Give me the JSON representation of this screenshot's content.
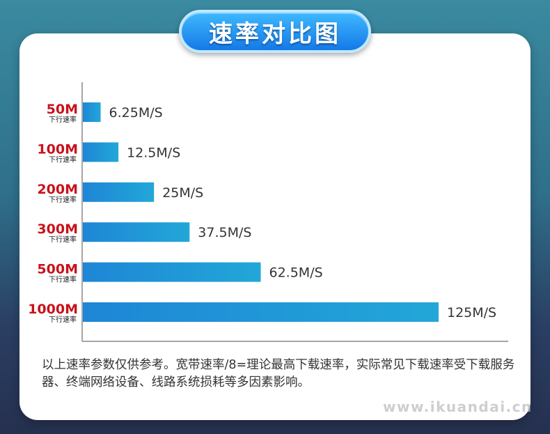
{
  "title": "速率对比图",
  "chart_data": {
    "type": "bar",
    "orientation": "horizontal",
    "categories": [
      "50M",
      "100M",
      "200M",
      "300M",
      "500M",
      "1000M"
    ],
    "category_sublabel": "下行速率",
    "values": [
      6.25,
      12.5,
      25,
      37.5,
      62.5,
      125
    ],
    "value_labels": [
      "6.25M/S",
      "12.5M/S",
      "25M/S",
      "37.5M/S",
      "62.5M/S",
      "125M/S"
    ],
    "xlim": [
      0,
      125
    ],
    "grid": false,
    "colors": {
      "bar_start": "#1e86d6",
      "bar_end": "#22a7d8",
      "category": "#c9111b"
    }
  },
  "note": "以上速率参数仅供参考。宽带速率/8=理论最高下载速率，实际常见下载速率受下载服务器、终端网络设备、线路系统损耗等多因素影响。",
  "watermark": "www.ikuandai.cn"
}
